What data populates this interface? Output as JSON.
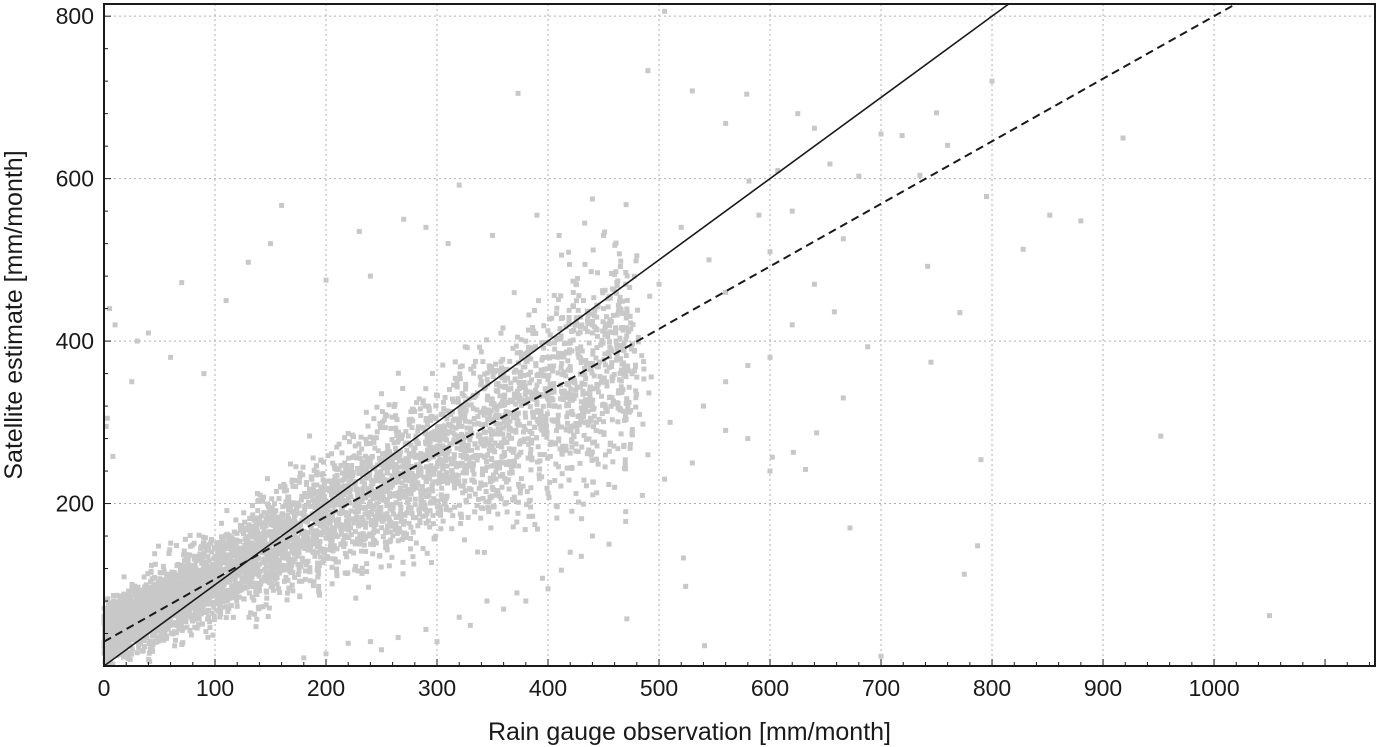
{
  "chart_data": {
    "type": "scatter",
    "title": "",
    "xlabel": "Rain gauge observation [mm/month]",
    "ylabel": "Satellite estimate [mm/month]",
    "xlim": [
      0,
      1145
    ],
    "ylim": [
      0,
      815
    ],
    "x_ticks": [
      0,
      100,
      200,
      300,
      400,
      500,
      600,
      700,
      800,
      900,
      1000
    ],
    "y_ticks": [
      200,
      400,
      600,
      800
    ],
    "x_minor_step": 20,
    "y_minor_step": 40,
    "grid": true,
    "point_color": "#c8c8c8",
    "line_color": "#1a1a1a",
    "lines": [
      {
        "style": "solid",
        "slope": 1.0,
        "intercept": 0
      },
      {
        "style": "dashed",
        "slope": 0.77,
        "intercept": 30
      }
    ],
    "points_note": "dense cloud",
    "points": [
      [
        1050,
        62
      ],
      [
        952,
        283
      ],
      [
        918,
        650
      ],
      [
        880,
        548
      ],
      [
        852,
        555
      ],
      [
        828,
        513
      ],
      [
        800,
        720
      ],
      [
        795,
        578
      ],
      [
        790,
        254
      ],
      [
        787,
        148
      ],
      [
        775,
        113
      ],
      [
        771,
        435
      ],
      [
        745,
        374
      ],
      [
        700,
        12
      ],
      [
        688,
        393
      ],
      [
        672,
        170
      ],
      [
        666,
        330
      ],
      [
        642,
        287
      ],
      [
        632,
        242
      ],
      [
        621,
        263
      ],
      [
        602,
        257
      ],
      [
        524,
        98
      ],
      [
        522,
        133
      ],
      [
        541,
        25
      ],
      [
        471,
        58
      ],
      [
        505,
        806
      ],
      [
        490,
        733
      ],
      [
        373,
        705
      ],
      [
        160,
        567
      ],
      [
        70,
        472
      ],
      [
        320,
        592
      ],
      [
        530,
        708
      ],
      [
        700,
        655
      ],
      [
        750,
        681
      ],
      [
        760,
        641
      ],
      [
        719,
        653
      ],
      [
        680,
        603
      ],
      [
        640,
        662
      ],
      [
        625,
        680
      ],
      [
        579,
        704
      ],
      [
        560,
        668
      ],
      [
        607,
        610
      ],
      [
        620,
        560
      ],
      [
        654,
        618
      ],
      [
        666,
        526
      ],
      [
        742,
        492
      ],
      [
        735,
        604
      ],
      [
        581,
        597
      ],
      [
        590,
        555
      ],
      [
        600,
        510
      ],
      [
        640,
        470
      ],
      [
        658,
        436
      ],
      [
        620,
        420
      ],
      [
        600,
        380
      ],
      [
        580,
        370
      ],
      [
        560,
        350
      ],
      [
        540,
        320
      ],
      [
        510,
        300
      ],
      [
        490,
        260
      ],
      [
        460,
        220
      ],
      [
        470,
        190
      ],
      [
        440,
        160
      ],
      [
        420,
        140
      ],
      [
        400,
        95
      ],
      [
        380,
        80
      ],
      [
        360,
        70
      ],
      [
        330,
        50
      ],
      [
        300,
        30
      ],
      [
        250,
        20
      ],
      [
        200,
        15
      ],
      [
        180,
        10
      ],
      [
        40,
        410
      ],
      [
        30,
        400
      ],
      [
        25,
        350
      ],
      [
        60,
        380
      ],
      [
        90,
        360
      ],
      [
        110,
        450
      ],
      [
        130,
        497
      ],
      [
        150,
        520
      ],
      [
        200,
        475
      ],
      [
        240,
        480
      ],
      [
        270,
        550
      ],
      [
        230,
        535
      ],
      [
        290,
        540
      ],
      [
        310,
        520
      ],
      [
        350,
        530
      ],
      [
        390,
        555
      ],
      [
        410,
        530
      ],
      [
        440,
        575
      ],
      [
        480,
        505
      ],
      [
        520,
        540
      ],
      [
        545,
        500
      ],
      [
        560,
        460
      ],
      [
        500,
        470
      ],
      [
        470,
        470
      ],
      [
        450,
        440
      ],
      [
        440,
        410
      ],
      [
        420,
        400
      ],
      [
        400,
        380
      ],
      [
        380,
        400
      ],
      [
        360,
        360
      ],
      [
        340,
        350
      ],
      [
        5,
        440
      ],
      [
        10,
        420
      ],
      [
        3,
        305
      ],
      [
        2,
        295
      ],
      [
        8,
        258
      ],
      [
        540,
        320
      ],
      [
        560,
        290
      ],
      [
        580,
        280
      ],
      [
        600,
        240
      ],
      [
        530,
        250
      ],
      [
        505,
        230
      ],
      [
        485,
        210
      ],
      [
        470,
        178
      ],
      [
        455,
        150
      ],
      [
        430,
        135
      ],
      [
        412,
        118
      ],
      [
        395,
        108
      ],
      [
        372,
        90
      ],
      [
        345,
        80
      ],
      [
        320,
        60
      ],
      [
        290,
        45
      ],
      [
        265,
        35
      ],
      [
        240,
        30
      ],
      [
        220,
        28
      ]
    ]
  }
}
